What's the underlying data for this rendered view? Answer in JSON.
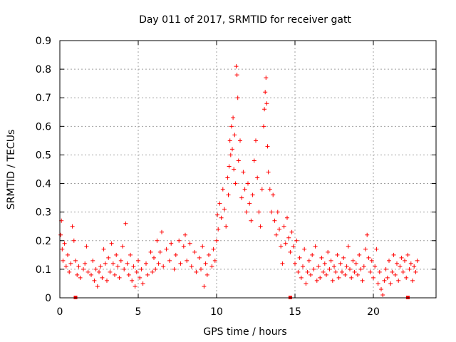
{
  "chart_data": {
    "type": "scatter",
    "title": "Day 011 of 2017, SRMTID for receiver gatt",
    "xlabel": "GPS time / hours",
    "ylabel": "SRMTID / TECUs",
    "xlim": [
      0,
      24
    ],
    "ylim": [
      0,
      0.9
    ],
    "xticks": [
      0,
      5,
      10,
      15,
      20
    ],
    "yticks": [
      0,
      0.1,
      0.2,
      0.3,
      0.4,
      0.5,
      0.6,
      0.7,
      0.8,
      0.9
    ],
    "xtick_labels": [
      "0",
      "5",
      "10",
      "15",
      "20"
    ],
    "ytick_labels": [
      "0",
      "0.1",
      "0.2",
      "0.3",
      "0.4",
      "0.5",
      "0.6",
      "0.7",
      "0.8",
      "0.9"
    ],
    "grid": true,
    "marker": "plus",
    "color": "#ff0000",
    "series": [
      {
        "name": "SRMTID",
        "points": [
          [
            0.05,
            0.22
          ],
          [
            0.1,
            0.27
          ],
          [
            0.15,
            0.17
          ],
          [
            0.2,
            0.13
          ],
          [
            0.3,
            0.19
          ],
          [
            0.4,
            0.11
          ],
          [
            0.5,
            0.15
          ],
          [
            0.6,
            0.09
          ],
          [
            0.7,
            0.12
          ],
          [
            0.8,
            0.25
          ],
          [
            0.9,
            0.2
          ],
          [
            1.0,
            0.13
          ],
          [
            1.1,
            0.08
          ],
          [
            1.2,
            0.11
          ],
          [
            1.3,
            0.07
          ],
          [
            1.5,
            0.1
          ],
          [
            1.6,
            0.12
          ],
          [
            1.7,
            0.18
          ],
          [
            1.8,
            0.09
          ],
          [
            2.0,
            0.08
          ],
          [
            2.1,
            0.13
          ],
          [
            2.2,
            0.06
          ],
          [
            2.3,
            0.1
          ],
          [
            2.4,
            0.04
          ],
          [
            2.5,
            0.09
          ],
          [
            2.6,
            0.11
          ],
          [
            2.7,
            0.07
          ],
          [
            2.8,
            0.17
          ],
          [
            2.9,
            0.12
          ],
          [
            3.0,
            0.06
          ],
          [
            3.1,
            0.14
          ],
          [
            3.2,
            0.09
          ],
          [
            3.3,
            0.19
          ],
          [
            3.4,
            0.12
          ],
          [
            3.5,
            0.08
          ],
          [
            3.6,
            0.15
          ],
          [
            3.7,
            0.11
          ],
          [
            3.8,
            0.07
          ],
          [
            3.9,
            0.13
          ],
          [
            4.0,
            0.18
          ],
          [
            4.1,
            0.1
          ],
          [
            4.2,
            0.26
          ],
          [
            4.3,
            0.12
          ],
          [
            4.4,
            0.08
          ],
          [
            4.5,
            0.15
          ],
          [
            4.6,
            0.06
          ],
          [
            4.7,
            0.11
          ],
          [
            4.8,
            0.04
          ],
          [
            4.9,
            0.09
          ],
          [
            5.0,
            0.13
          ],
          [
            5.1,
            0.07
          ],
          [
            5.2,
            0.1
          ],
          [
            5.3,
            0.05
          ],
          [
            5.5,
            0.12
          ],
          [
            5.6,
            0.08
          ],
          [
            5.8,
            0.16
          ],
          [
            5.9,
            0.09
          ],
          [
            6.0,
            0.14
          ],
          [
            6.1,
            0.1
          ],
          [
            6.2,
            0.2
          ],
          [
            6.3,
            0.12
          ],
          [
            6.4,
            0.16
          ],
          [
            6.5,
            0.23
          ],
          [
            6.6,
            0.11
          ],
          [
            6.8,
            0.17
          ],
          [
            7.0,
            0.13
          ],
          [
            7.1,
            0.19
          ],
          [
            7.3,
            0.1
          ],
          [
            7.4,
            0.15
          ],
          [
            7.6,
            0.2
          ],
          [
            7.7,
            0.12
          ],
          [
            7.9,
            0.18
          ],
          [
            8.0,
            0.22
          ],
          [
            8.1,
            0.13
          ],
          [
            8.3,
            0.19
          ],
          [
            8.4,
            0.11
          ],
          [
            8.6,
            0.16
          ],
          [
            8.7,
            0.09
          ],
          [
            8.9,
            0.14
          ],
          [
            9.0,
            0.1
          ],
          [
            9.1,
            0.18
          ],
          [
            9.2,
            0.04
          ],
          [
            9.3,
            0.12
          ],
          [
            9.4,
            0.08
          ],
          [
            9.5,
            0.15
          ],
          [
            9.7,
            0.11
          ],
          [
            9.8,
            0.17
          ],
          [
            9.9,
            0.13
          ],
          [
            10.0,
            0.2
          ],
          [
            10.05,
            0.29
          ],
          [
            10.1,
            0.24
          ],
          [
            10.2,
            0.33
          ],
          [
            10.3,
            0.28
          ],
          [
            10.4,
            0.38
          ],
          [
            10.5,
            0.31
          ],
          [
            10.6,
            0.25
          ],
          [
            10.7,
            0.42
          ],
          [
            10.75,
            0.36
          ],
          [
            10.8,
            0.46
          ],
          [
            10.85,
            0.55
          ],
          [
            10.9,
            0.5
          ],
          [
            10.95,
            0.6
          ],
          [
            11.0,
            0.52
          ],
          [
            11.05,
            0.63
          ],
          [
            11.1,
            0.45
          ],
          [
            11.15,
            0.57
          ],
          [
            11.2,
            0.4
          ],
          [
            11.25,
            0.81
          ],
          [
            11.3,
            0.78
          ],
          [
            11.35,
            0.7
          ],
          [
            11.4,
            0.48
          ],
          [
            11.5,
            0.55
          ],
          [
            11.6,
            0.35
          ],
          [
            11.7,
            0.44
          ],
          [
            11.8,
            0.38
          ],
          [
            11.9,
            0.3
          ],
          [
            12.0,
            0.4
          ],
          [
            12.1,
            0.33
          ],
          [
            12.2,
            0.27
          ],
          [
            12.3,
            0.36
          ],
          [
            12.4,
            0.48
          ],
          [
            12.5,
            0.55
          ],
          [
            12.6,
            0.42
          ],
          [
            12.7,
            0.3
          ],
          [
            12.8,
            0.25
          ],
          [
            12.9,
            0.38
          ],
          [
            13.0,
            0.6
          ],
          [
            13.05,
            0.66
          ],
          [
            13.1,
            0.72
          ],
          [
            13.15,
            0.77
          ],
          [
            13.2,
            0.68
          ],
          [
            13.25,
            0.53
          ],
          [
            13.3,
            0.44
          ],
          [
            13.4,
            0.38
          ],
          [
            13.5,
            0.3
          ],
          [
            13.6,
            0.36
          ],
          [
            13.7,
            0.27
          ],
          [
            13.8,
            0.22
          ],
          [
            13.9,
            0.3
          ],
          [
            14.0,
            0.24
          ],
          [
            14.1,
            0.18
          ],
          [
            14.2,
            0.12
          ],
          [
            14.3,
            0.25
          ],
          [
            14.4,
            0.19
          ],
          [
            14.5,
            0.28
          ],
          [
            14.6,
            0.21
          ],
          [
            14.7,
            0.16
          ],
          [
            14.8,
            0.23
          ],
          [
            14.9,
            0.18
          ],
          [
            15.0,
            0.12
          ],
          [
            15.1,
            0.2
          ],
          [
            15.2,
            0.09
          ],
          [
            15.3,
            0.14
          ],
          [
            15.4,
            0.07
          ],
          [
            15.5,
            0.11
          ],
          [
            15.6,
            0.17
          ],
          [
            15.7,
            0.05
          ],
          [
            15.8,
            0.09
          ],
          [
            15.9,
            0.13
          ],
          [
            16.0,
            0.08
          ],
          [
            16.1,
            0.15
          ],
          [
            16.2,
            0.1
          ],
          [
            16.3,
            0.18
          ],
          [
            16.4,
            0.06
          ],
          [
            16.5,
            0.11
          ],
          [
            16.6,
            0.07
          ],
          [
            16.7,
            0.14
          ],
          [
            16.8,
            0.09
          ],
          [
            16.9,
            0.12
          ],
          [
            17.0,
            0.08
          ],
          [
            17.1,
            0.16
          ],
          [
            17.2,
            0.1
          ],
          [
            17.3,
            0.13
          ],
          [
            17.4,
            0.06
          ],
          [
            17.5,
            0.11
          ],
          [
            17.6,
            0.09
          ],
          [
            17.7,
            0.15
          ],
          [
            17.8,
            0.07
          ],
          [
            17.9,
            0.12
          ],
          [
            18.0,
            0.09
          ],
          [
            18.1,
            0.14
          ],
          [
            18.2,
            0.08
          ],
          [
            18.3,
            0.11
          ],
          [
            18.4,
            0.18
          ],
          [
            18.5,
            0.1
          ],
          [
            18.6,
            0.07
          ],
          [
            18.7,
            0.13
          ],
          [
            18.8,
            0.09
          ],
          [
            18.9,
            0.12
          ],
          [
            19.0,
            0.08
          ],
          [
            19.1,
            0.15
          ],
          [
            19.2,
            0.1
          ],
          [
            19.3,
            0.06
          ],
          [
            19.4,
            0.11
          ],
          [
            19.5,
            0.17
          ],
          [
            19.6,
            0.22
          ],
          [
            19.7,
            0.14
          ],
          [
            19.8,
            0.09
          ],
          [
            19.9,
            0.13
          ],
          [
            20.0,
            0.07
          ],
          [
            20.1,
            0.11
          ],
          [
            20.2,
            0.17
          ],
          [
            20.3,
            0.05
          ],
          [
            20.4,
            0.09
          ],
          [
            20.5,
            0.03
          ],
          [
            20.6,
            0.01
          ],
          [
            20.7,
            0.06
          ],
          [
            20.8,
            0.1
          ],
          [
            20.9,
            0.07
          ],
          [
            21.0,
            0.13
          ],
          [
            21.1,
            0.05
          ],
          [
            21.2,
            0.09
          ],
          [
            21.3,
            0.15
          ],
          [
            21.4,
            0.08
          ],
          [
            21.5,
            0.12
          ],
          [
            21.6,
            0.06
          ],
          [
            21.7,
            0.11
          ],
          [
            21.8,
            0.14
          ],
          [
            21.9,
            0.09
          ],
          [
            22.0,
            0.13
          ],
          [
            22.1,
            0.07
          ],
          [
            22.2,
            0.15
          ],
          [
            22.3,
            0.1
          ],
          [
            22.4,
            0.12
          ],
          [
            22.5,
            0.06
          ],
          [
            22.6,
            0.11
          ],
          [
            22.7,
            0.09
          ],
          [
            22.8,
            0.13
          ]
        ]
      }
    ],
    "baseline_markers_x": [
      1.0,
      14.7,
      22.2
    ]
  }
}
